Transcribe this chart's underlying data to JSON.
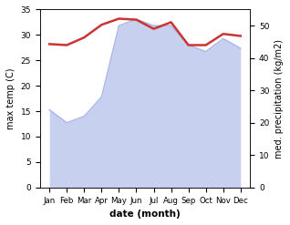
{
  "months": [
    "Jan",
    "Feb",
    "Mar",
    "Apr",
    "May",
    "Jun",
    "Jul",
    "Aug",
    "Sep",
    "Oct",
    "Nov",
    "Dec"
  ],
  "temp": [
    28.2,
    28.0,
    29.5,
    32.0,
    33.2,
    33.0,
    31.2,
    32.5,
    28.0,
    28.0,
    30.2,
    29.8
  ],
  "precip": [
    24,
    20,
    22,
    28,
    50,
    52,
    50,
    50,
    44,
    42,
    46,
    43
  ],
  "temp_color": "#cc3333",
  "precip_fill_color": "#c8d0f0",
  "precip_line_color": "#aab4e8",
  "ylim_temp": [
    0,
    35
  ],
  "ylim_precip": [
    0,
    55
  ],
  "ylabel_left": "max temp (C)",
  "ylabel_right": "med. precipitation (kg/m2)",
  "xlabel": "date (month)",
  "yticks_left": [
    0,
    5,
    10,
    15,
    20,
    25,
    30,
    35
  ],
  "yticks_right": [
    0,
    10,
    20,
    30,
    40,
    50
  ],
  "bg_color": "#ffffff"
}
